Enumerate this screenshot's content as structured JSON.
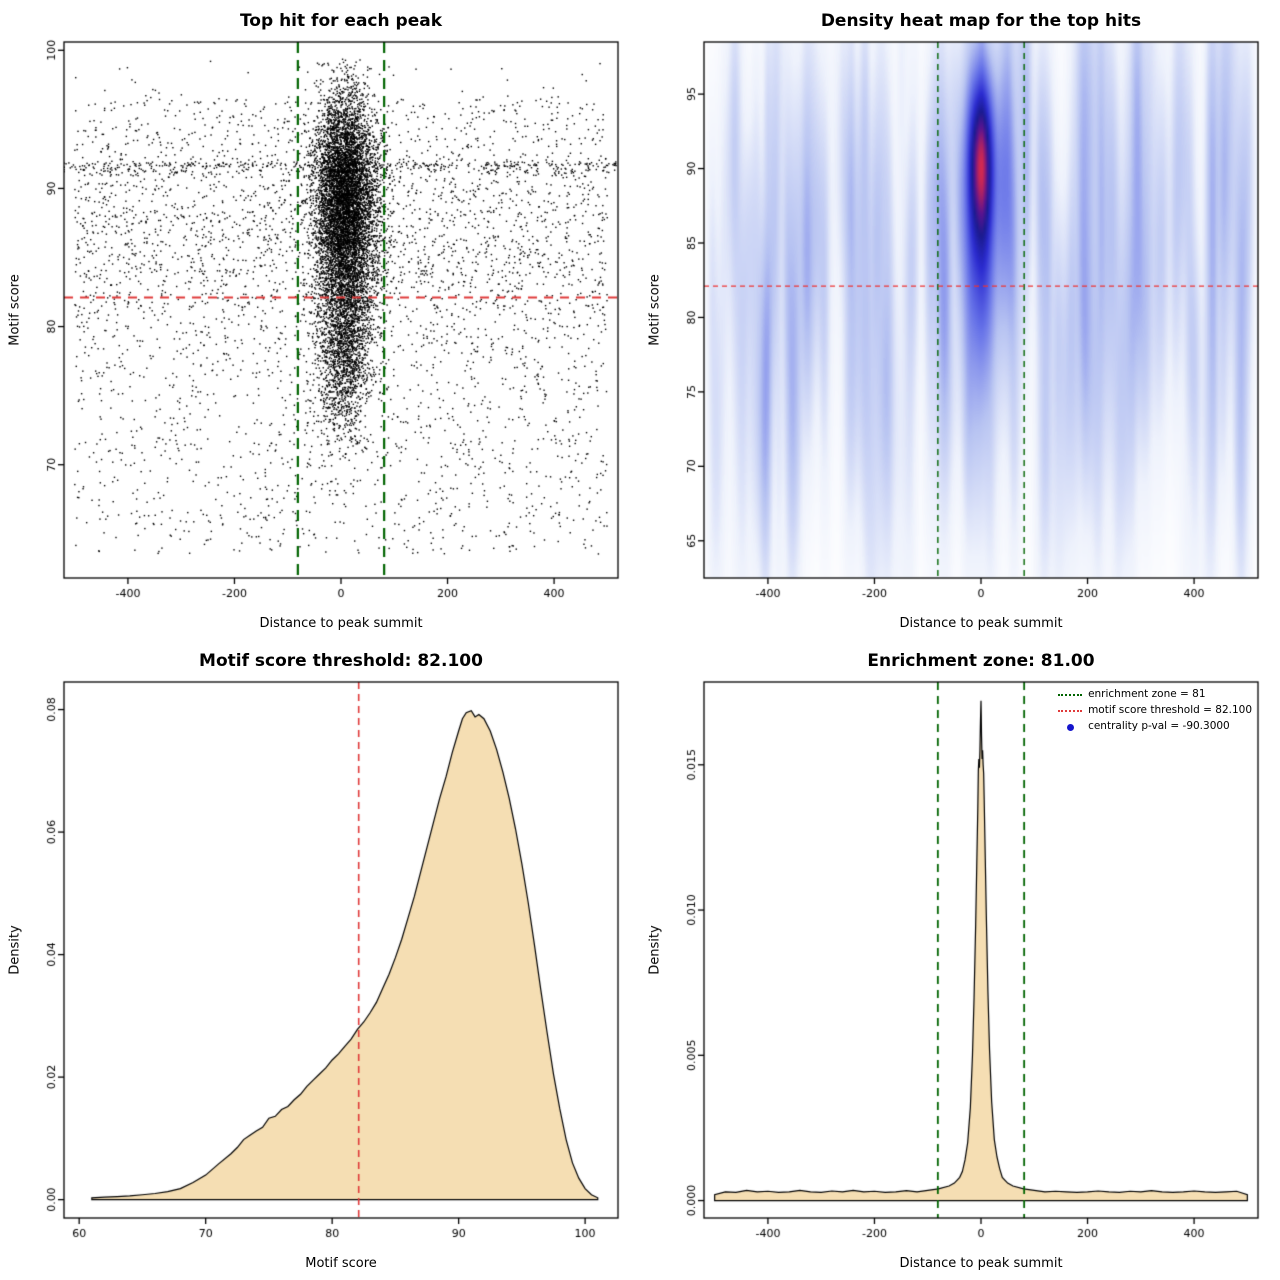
{
  "colors": {
    "threshold_red": "#e03a3a",
    "zone_green": "#006400",
    "density_fill": "#f5deb3",
    "curve_stroke": "#000000",
    "point_black": "#000000",
    "pval_blue": "#1515cc"
  },
  "chart_data": [
    {
      "type": "scatter",
      "title": "Top hit for each peak",
      "xlabel": "Distance to peak summit",
      "ylabel": "Motif score",
      "xlim": [
        -520,
        520
      ],
      "ylim": [
        61.8,
        100.6
      ],
      "xticks": [
        {
          "v": -400,
          "label": "-400"
        },
        {
          "v": -200,
          "label": "-200"
        },
        {
          "v": 0,
          "label": "0"
        },
        {
          "v": 200,
          "label": "200"
        },
        {
          "v": 400,
          "label": "400"
        }
      ],
      "yticks": [
        {
          "v": 70,
          "label": "70"
        },
        {
          "v": 80,
          "label": "80"
        },
        {
          "v": 90,
          "label": "90"
        },
        {
          "v": 100,
          "label": "100"
        }
      ],
      "hlines": [
        {
          "y": 82.1,
          "color": "#e03a3a",
          "width": 2,
          "dash": [
            9,
            7
          ]
        }
      ],
      "vlines": [
        {
          "x": -81,
          "color": "#006400",
          "width": 2.2,
          "dash": [
            11,
            7
          ]
        },
        {
          "x": 81,
          "color": "#006400",
          "width": 2.2,
          "dash": [
            11,
            7
          ]
        }
      ],
      "point_color": "#000000",
      "points_spec": {
        "seed": 42,
        "clusters": [
          {
            "n": 5200,
            "x_mean": 8,
            "x_sd": 30,
            "y_mean": 90,
            "y_sd": 3.6
          },
          {
            "n": 3000,
            "x_mean": 8,
            "x_sd": 27,
            "y_mean": 84,
            "y_sd": 4.5
          },
          {
            "n": 900,
            "x_mean": 5,
            "x_sd": 24,
            "y_mean": 77.5,
            "y_sd": 2.8
          }
        ],
        "background": [
          {
            "n": 2400,
            "x_min": -500,
            "x_max": 500,
            "y_min": 63.5,
            "y_max": 96.5
          },
          {
            "n": 1500,
            "x_min": -500,
            "x_max": 500,
            "y_mean": 87,
            "y_sd": 5
          }
        ],
        "bands": [
          {
            "y": 91.7,
            "n": 260
          },
          {
            "y": 91.3,
            "n": 110
          }
        ],
        "y_clip": [
          62.5,
          99.4
        ]
      }
    },
    {
      "type": "heatmap",
      "title": "Density heat map for the top hits",
      "xlabel": "Distance to peak summit",
      "ylabel": "Motif score",
      "xlim": [
        -520,
        520
      ],
      "ylim": [
        62.5,
        98.5
      ],
      "xticks": [
        {
          "v": -400,
          "label": "-400"
        },
        {
          "v": -200,
          "label": "-200"
        },
        {
          "v": 0,
          "label": "0"
        },
        {
          "v": 200,
          "label": "200"
        },
        {
          "v": 400,
          "label": "400"
        }
      ],
      "yticks": [
        {
          "v": 65,
          "label": "65"
        },
        {
          "v": 70,
          "label": "70"
        },
        {
          "v": 75,
          "label": "75"
        },
        {
          "v": 80,
          "label": "80"
        },
        {
          "v": 85,
          "label": "85"
        },
        {
          "v": 90,
          "label": "90"
        },
        {
          "v": 95,
          "label": "95"
        }
      ],
      "hlines": [
        {
          "y": 82.1,
          "color": "#ee3333",
          "width": 1.2,
          "dash": [
            5,
            4
          ]
        }
      ],
      "vlines": [
        {
          "x": -81,
          "color": "#006400",
          "width": 1.4,
          "dash": [
            6,
            5
          ]
        },
        {
          "x": 81,
          "color": "#006400",
          "width": 1.4,
          "dash": [
            6,
            5
          ]
        }
      ],
      "density_spec": {
        "seed": 7,
        "blobs": [
          {
            "x": 0,
            "y": 90.5,
            "sx": 14,
            "sy": 3.2,
            "w": 1.0
          },
          {
            "x": 0,
            "y": 89.5,
            "sx": 20,
            "sy": 5.5,
            "w": 0.6
          },
          {
            "x": 0,
            "y": 84.0,
            "sx": 18,
            "sy": 5.0,
            "w": 0.22
          },
          {
            "x": 0,
            "y": 79.0,
            "sx": 22,
            "sy": 7.0,
            "w": 0.1
          }
        ],
        "streaks": {
          "n": 240,
          "w_min": 0.02,
          "w_max": 0.075,
          "sx": 7,
          "sy": 6,
          "y_min": 70,
          "y_max": 97
        },
        "gamma": 0.5,
        "colormap": [
          {
            "t": 0.0,
            "c": "#ffffff"
          },
          {
            "t": 0.14,
            "c": "#eef2fc"
          },
          {
            "t": 0.32,
            "c": "#b8c4f2"
          },
          {
            "t": 0.52,
            "c": "#6470e8"
          },
          {
            "t": 0.68,
            "c": "#2b2bd0"
          },
          {
            "t": 0.8,
            "c": "#1b1b8f"
          },
          {
            "t": 0.89,
            "c": "#5a1490"
          },
          {
            "t": 1.0,
            "c": "#d42a50"
          }
        ]
      }
    },
    {
      "type": "area",
      "title": "Motif score threshold: 82.100",
      "xlabel": "Motif score",
      "ylabel": "Density",
      "xlim": [
        58.8,
        102.6
      ],
      "ylim": [
        -0.003,
        0.0845
      ],
      "xticks": [
        {
          "v": 60,
          "label": "60"
        },
        {
          "v": 70,
          "label": "70"
        },
        {
          "v": 80,
          "label": "80"
        },
        {
          "v": 90,
          "label": "90"
        },
        {
          "v": 100,
          "label": "100"
        }
      ],
      "yticks": [
        {
          "v": 0,
          "label": "0.00"
        },
        {
          "v": 0.02,
          "label": "0.02"
        },
        {
          "v": 0.04,
          "label": "0.04"
        },
        {
          "v": 0.06,
          "label": "0.06"
        },
        {
          "v": 0.08,
          "label": "0.08"
        }
      ],
      "vlines": [
        {
          "x": 82.1,
          "color": "#e03a3a",
          "width": 1.6,
          "dash": [
            7,
            5
          ]
        }
      ],
      "hlines": [],
      "fill": "#f5deb3",
      "stroke": "#000000",
      "curve": [
        [
          61,
          0.0003
        ],
        [
          62,
          0.0004
        ],
        [
          63,
          0.0005
        ],
        [
          64,
          0.0006
        ],
        [
          65,
          0.0008
        ],
        [
          66,
          0.001
        ],
        [
          67,
          0.0013
        ],
        [
          68,
          0.0018
        ],
        [
          69,
          0.0028
        ],
        [
          70,
          0.004
        ],
        [
          71,
          0.0058
        ],
        [
          72,
          0.0075
        ],
        [
          72.5,
          0.0085
        ],
        [
          73,
          0.0098
        ],
        [
          73.5,
          0.0105
        ],
        [
          74,
          0.0112
        ],
        [
          74.5,
          0.0118
        ],
        [
          75,
          0.0133
        ],
        [
          75.5,
          0.0136
        ],
        [
          76,
          0.0147
        ],
        [
          76.5,
          0.0152
        ],
        [
          77,
          0.0163
        ],
        [
          77.5,
          0.0172
        ],
        [
          78,
          0.0185
        ],
        [
          78.5,
          0.0195
        ],
        [
          79,
          0.0205
        ],
        [
          79.5,
          0.0215
        ],
        [
          80,
          0.0228
        ],
        [
          80.5,
          0.0238
        ],
        [
          81,
          0.025
        ],
        [
          81.5,
          0.0262
        ],
        [
          82,
          0.0278
        ],
        [
          82.5,
          0.029
        ],
        [
          83,
          0.0305
        ],
        [
          83.5,
          0.0322
        ],
        [
          84,
          0.0345
        ],
        [
          84.5,
          0.0368
        ],
        [
          85,
          0.0395
        ],
        [
          85.5,
          0.0425
        ],
        [
          86,
          0.046
        ],
        [
          86.5,
          0.0495
        ],
        [
          87,
          0.0535
        ],
        [
          87.5,
          0.0575
        ],
        [
          88,
          0.0615
        ],
        [
          88.5,
          0.0655
        ],
        [
          89,
          0.069
        ],
        [
          89.5,
          0.073
        ],
        [
          90,
          0.0765
        ],
        [
          90.3,
          0.0785
        ],
        [
          90.6,
          0.0795
        ],
        [
          91,
          0.0798
        ],
        [
          91.3,
          0.0788
        ],
        [
          91.6,
          0.0792
        ],
        [
          92,
          0.0785
        ],
        [
          92.5,
          0.0765
        ],
        [
          93,
          0.0735
        ],
        [
          93.5,
          0.0698
        ],
        [
          94,
          0.0655
        ],
        [
          94.5,
          0.0605
        ],
        [
          95,
          0.0548
        ],
        [
          95.5,
          0.0485
        ],
        [
          96,
          0.0415
        ],
        [
          96.5,
          0.0342
        ],
        [
          97,
          0.0272
        ],
        [
          97.5,
          0.0205
        ],
        [
          98,
          0.0148
        ],
        [
          98.5,
          0.0098
        ],
        [
          99,
          0.006
        ],
        [
          99.5,
          0.0035
        ],
        [
          100,
          0.0018
        ],
        [
          100.5,
          0.0008
        ],
        [
          101,
          0.0003
        ]
      ]
    },
    {
      "type": "area",
      "title": "Enrichment zone: 81.00",
      "xlabel": "Distance to peak summit",
      "ylabel": "Density",
      "xlim": [
        -520,
        520
      ],
      "ylim": [
        -0.0006,
        0.01785
      ],
      "xticks": [
        {
          "v": -400,
          "label": "-400"
        },
        {
          "v": -200,
          "label": "-200"
        },
        {
          "v": 0,
          "label": "0"
        },
        {
          "v": 200,
          "label": "200"
        },
        {
          "v": 400,
          "label": "400"
        }
      ],
      "yticks": [
        {
          "v": 0,
          "label": "0.000"
        },
        {
          "v": 0.005,
          "label": "0.005"
        },
        {
          "v": 0.01,
          "label": "0.010"
        },
        {
          "v": 0.015,
          "label": "0.015"
        }
      ],
      "vlines": [
        {
          "x": -81,
          "color": "#006400",
          "width": 1.8,
          "dash": [
            8,
            6
          ]
        },
        {
          "x": 81,
          "color": "#006400",
          "width": 1.8,
          "dash": [
            8,
            6
          ]
        }
      ],
      "hlines": [],
      "fill": "#f5deb3",
      "stroke": "#000000",
      "curve": [
        [
          -500,
          0.0002
        ],
        [
          -480,
          0.0003
        ],
        [
          -460,
          0.00028
        ],
        [
          -440,
          0.00035
        ],
        [
          -420,
          0.0003
        ],
        [
          -400,
          0.00032
        ],
        [
          -380,
          0.00028
        ],
        [
          -360,
          0.0003
        ],
        [
          -340,
          0.00035
        ],
        [
          -320,
          0.0003
        ],
        [
          -300,
          0.00028
        ],
        [
          -280,
          0.00033
        ],
        [
          -260,
          0.0003
        ],
        [
          -240,
          0.00035
        ],
        [
          -220,
          0.0003
        ],
        [
          -200,
          0.00032
        ],
        [
          -180,
          0.00028
        ],
        [
          -160,
          0.0003
        ],
        [
          -140,
          0.00034
        ],
        [
          -120,
          0.0003
        ],
        [
          -100,
          0.00035
        ],
        [
          -80,
          0.0004
        ],
        [
          -60,
          0.0005
        ],
        [
          -50,
          0.0006
        ],
        [
          -40,
          0.0008
        ],
        [
          -35,
          0.001
        ],
        [
          -30,
          0.0014
        ],
        [
          -25,
          0.002
        ],
        [
          -20,
          0.0032
        ],
        [
          -16,
          0.005
        ],
        [
          -13,
          0.007
        ],
        [
          -10,
          0.0095
        ],
        [
          -8,
          0.0115
        ],
        [
          -6,
          0.0135
        ],
        [
          -5,
          0.0148
        ],
        [
          -4,
          0.0152
        ],
        [
          -3,
          0.0149
        ],
        [
          -2,
          0.0155
        ],
        [
          -1,
          0.0165
        ],
        [
          0,
          0.0172
        ],
        [
          1,
          0.016
        ],
        [
          2,
          0.0152
        ],
        [
          3,
          0.0155
        ],
        [
          4,
          0.015
        ],
        [
          5,
          0.0147
        ],
        [
          6,
          0.0138
        ],
        [
          8,
          0.0118
        ],
        [
          10,
          0.0098
        ],
        [
          13,
          0.0072
        ],
        [
          16,
          0.0052
        ],
        [
          20,
          0.0034
        ],
        [
          25,
          0.0021
        ],
        [
          30,
          0.0015
        ],
        [
          35,
          0.0011
        ],
        [
          40,
          0.0008
        ],
        [
          50,
          0.0006
        ],
        [
          60,
          0.0005
        ],
        [
          80,
          0.0004
        ],
        [
          100,
          0.00035
        ],
        [
          120,
          0.0003
        ],
        [
          140,
          0.00032
        ],
        [
          160,
          0.0003
        ],
        [
          180,
          0.00028
        ],
        [
          200,
          0.0003
        ],
        [
          220,
          0.00033
        ],
        [
          240,
          0.0003
        ],
        [
          260,
          0.00028
        ],
        [
          280,
          0.00032
        ],
        [
          300,
          0.0003
        ],
        [
          320,
          0.00034
        ],
        [
          340,
          0.0003
        ],
        [
          360,
          0.00028
        ],
        [
          380,
          0.0003
        ],
        [
          400,
          0.00033
        ],
        [
          420,
          0.0003
        ],
        [
          440,
          0.00028
        ],
        [
          460,
          0.0003
        ],
        [
          480,
          0.00032
        ],
        [
          500,
          0.0002
        ]
      ],
      "legend": {
        "items": [
          {
            "label": "enrichment zone = 81",
            "color": "#006400",
            "type": "dotted-line"
          },
          {
            "label": "motif score threshold = 82.100",
            "color": "#e03a3a",
            "type": "dotted-line"
          },
          {
            "label": "centrality p-val = -90.3000",
            "color": "#1515cc",
            "type": "point"
          }
        ]
      }
    }
  ]
}
